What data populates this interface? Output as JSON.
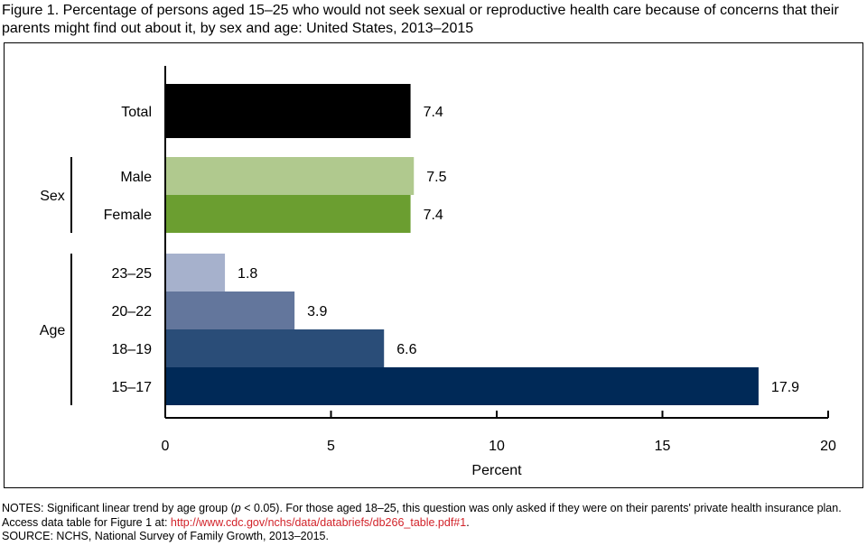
{
  "chart_data": {
    "type": "bar",
    "orientation": "horizontal",
    "title": "Figure 1. Percentage of persons aged 15–25 who would not seek sexual or reproductive health care because of concerns that their parents might find out about it, by sex and age: United States, 2013–2015",
    "xlabel": "Percent",
    "xlim": [
      0,
      20
    ],
    "xticks": [
      "0",
      "5",
      "10",
      "15",
      "20"
    ],
    "groups": [
      {
        "label": "",
        "categories": [
          0
        ]
      },
      {
        "label": "Sex",
        "categories": [
          1,
          2
        ]
      },
      {
        "label": "Age",
        "categories": [
          3,
          4,
          5,
          6
        ]
      }
    ],
    "categories": [
      "Total",
      "Male",
      "Female",
      "23–25",
      "20–22",
      "18–19",
      "15–17"
    ],
    "values": [
      7.4,
      7.5,
      7.4,
      1.8,
      3.9,
      6.6,
      17.9
    ],
    "value_labels": [
      "7.4",
      "7.5",
      "7.4",
      "1.8",
      "3.9",
      "6.6",
      "17.9"
    ],
    "colors": [
      "#000000",
      "#b0c98e",
      "#6b9e30",
      "#a6b1cc",
      "#63769c",
      "#2a4d78",
      "#002957"
    ],
    "grid": false
  },
  "notes": {
    "line1": "NOTES: Significant linear trend by age group (",
    "p": "p",
    "line1b": " < 0.05). For those aged 18–25, this question was only asked if they were on their parents' private health insurance plan. Access data table for Figure 1 at: ",
    "link": "http://www.cdc.gov/nchs/data/databriefs/db266_table.pdf#1",
    "end": ".",
    "source": "SOURCE: NCHS, National Survey of Family Growth, 2013–2015."
  }
}
